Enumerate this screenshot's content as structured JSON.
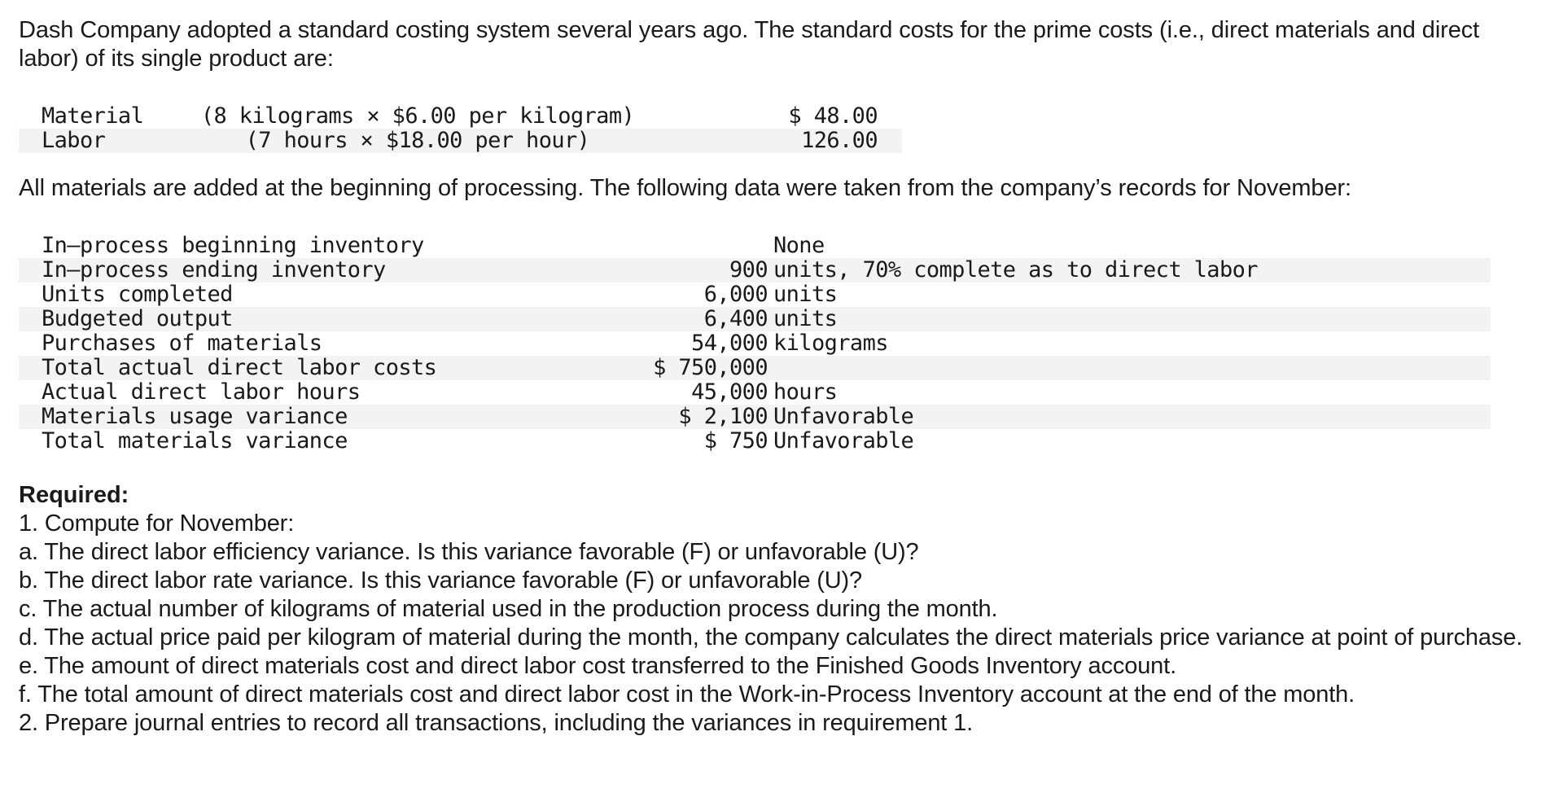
{
  "intro": "Dash Company adopted a standard costing system several years ago. The standard costs for the prime costs (i.e., direct materials and direct labor) of its single product are:",
  "standard_costs": [
    {
      "name": "Material",
      "calc": "(8 kilograms × $6.00 per kilogram)",
      "amount": "$ 48.00"
    },
    {
      "name": "Labor",
      "calc": "(7 hours × $18.00 per hour)",
      "amount": "126.00"
    }
  ],
  "paragraph2": "All materials are added at the beginning of processing. The following data were taken from the company’s records for November:",
  "november_data": [
    {
      "name": "In–process beginning inventory",
      "value": "",
      "unit": "None"
    },
    {
      "name": "In–process ending inventory",
      "value": "900",
      "unit": "units, 70% complete as to direct labor"
    },
    {
      "name": "Units completed",
      "value": "6,000",
      "unit": "units"
    },
    {
      "name": "Budgeted output",
      "value": "6,400",
      "unit": "units"
    },
    {
      "name": "Purchases of materials",
      "value": "54,000",
      "unit": "kilograms"
    },
    {
      "name": "Total actual direct labor costs",
      "value": "$ 750,000",
      "unit": ""
    },
    {
      "name": "Actual direct labor hours",
      "value": "45,000",
      "unit": "hours"
    },
    {
      "name": "Materials usage variance",
      "value": "$ 2,100",
      "unit": "Unfavorable"
    },
    {
      "name": "Total materials variance",
      "value": "$ 750",
      "unit": "Unfavorable"
    }
  ],
  "required": {
    "title": "Required:",
    "lines": [
      "1. Compute for November:",
      "a. The direct labor efficiency variance. Is this variance favorable (F) or unfavorable (U)?",
      "b. The direct labor rate variance. Is this variance favorable (F) or unfavorable (U)?",
      "c. The actual number of kilograms of material used in the production process during the month.",
      "d. The actual price paid per kilogram of material during the month, the company calculates the direct materials price variance at point of purchase.",
      "e. The amount of direct materials cost and direct labor cost transferred to the Finished Goods Inventory account.",
      "f. The total amount of direct materials cost and direct labor cost in the Work-in-Process Inventory account at the end of the month.",
      "2. Prepare journal entries to record all transactions, including the variances in requirement 1."
    ]
  }
}
